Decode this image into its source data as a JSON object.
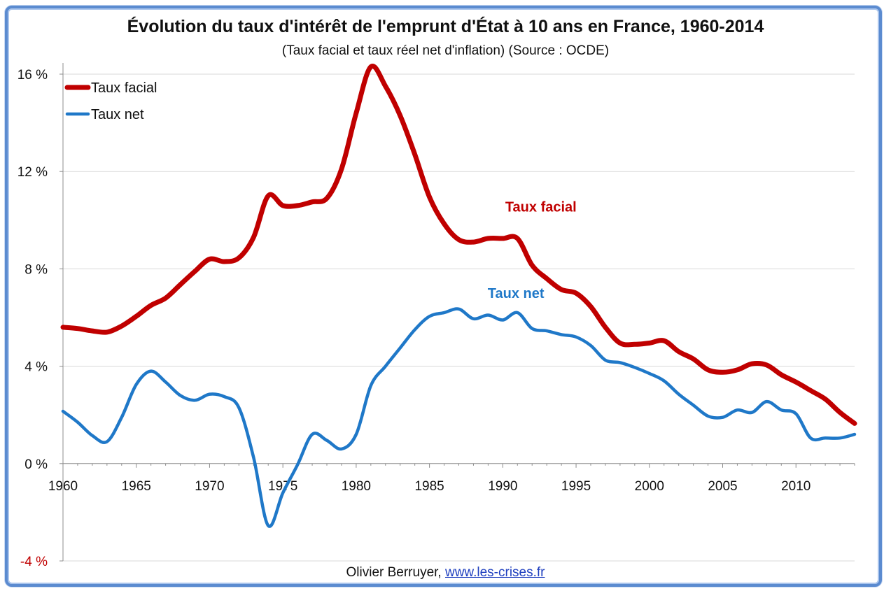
{
  "chart_data": {
    "type": "line",
    "title": "Évolution du taux d'intérêt de l'emprunt d'État à 10 ans en France, 1960-2014",
    "subtitle": "(Taux facial et taux réel net d'inflation) (Source : OCDE)",
    "xlabel": "",
    "ylabel": "",
    "xlim": [
      1960,
      2014
    ],
    "ylim": [
      -4,
      16
    ],
    "x_ticks": [
      1960,
      1965,
      1970,
      1975,
      1980,
      1985,
      1990,
      1995,
      2000,
      2005,
      2010
    ],
    "x_tick_labels": [
      "1960",
      "1965",
      "1970",
      "1975",
      "1980",
      "1985",
      "1990",
      "1995",
      "2000",
      "2005",
      "2010"
    ],
    "y_ticks": [
      -4,
      0,
      4,
      8,
      12,
      16
    ],
    "y_tick_labels": [
      "-4 %",
      "0 %",
      "4 %",
      "8 %",
      "12 %",
      "16 %"
    ],
    "grid": "horizontal",
    "legend_position": "top-left",
    "x": [
      1960,
      1961,
      1962,
      1963,
      1964,
      1965,
      1966,
      1967,
      1968,
      1969,
      1970,
      1971,
      1972,
      1973,
      1974,
      1975,
      1976,
      1977,
      1978,
      1979,
      1980,
      1981,
      1982,
      1983,
      1984,
      1985,
      1986,
      1987,
      1988,
      1989,
      1990,
      1991,
      1992,
      1993,
      1994,
      1995,
      1996,
      1997,
      1998,
      1999,
      2000,
      2001,
      2002,
      2003,
      2004,
      2005,
      2006,
      2007,
      2008,
      2009,
      2010,
      2011,
      2012,
      2013,
      2014
    ],
    "series": [
      {
        "name": "Taux facial",
        "color": "#c00000",
        "values": [
          5.6,
          5.55,
          5.45,
          5.4,
          5.65,
          6.05,
          6.5,
          6.8,
          7.35,
          7.9,
          8.4,
          8.3,
          8.45,
          9.3,
          11.0,
          10.6,
          10.6,
          10.75,
          10.9,
          12.1,
          14.4,
          16.3,
          15.5,
          14.3,
          12.7,
          10.95,
          9.85,
          9.2,
          9.1,
          9.25,
          9.25,
          9.25,
          8.15,
          7.6,
          7.15,
          7.0,
          6.45,
          5.6,
          4.95,
          4.9,
          4.95,
          5.05,
          4.6,
          4.3,
          3.85,
          3.75,
          3.85,
          4.1,
          4.05,
          3.65,
          3.35,
          3.0,
          2.65,
          2.1,
          1.65
        ]
      },
      {
        "name": "Taux net",
        "color": "#1f78c8",
        "values": [
          2.15,
          1.7,
          1.15,
          0.9,
          1.9,
          3.25,
          3.8,
          3.35,
          2.8,
          2.6,
          2.85,
          2.75,
          2.3,
          0.25,
          -2.55,
          -1.2,
          -0.05,
          1.2,
          0.95,
          0.6,
          1.2,
          3.2,
          4.0,
          4.75,
          5.5,
          6.05,
          6.2,
          6.35,
          5.95,
          6.1,
          5.9,
          6.2,
          5.55,
          5.45,
          5.3,
          5.2,
          4.85,
          4.25,
          4.15,
          3.95,
          3.7,
          3.4,
          2.85,
          2.4,
          1.95,
          1.9,
          2.2,
          2.1,
          2.55,
          2.2,
          2.05,
          1.05,
          1.05,
          1.05,
          1.2
        ]
      }
    ],
    "annotations": [
      {
        "text": "Taux facial",
        "series": "Taux facial",
        "x": 1992.6,
        "y": 10.35
      },
      {
        "text": "Taux net",
        "series": "Taux net",
        "x": 1990.9,
        "y": 6.8
      }
    ]
  },
  "credit": {
    "author": "Olivier Berruyer,",
    "link_text": "www.les-crises.fr"
  }
}
